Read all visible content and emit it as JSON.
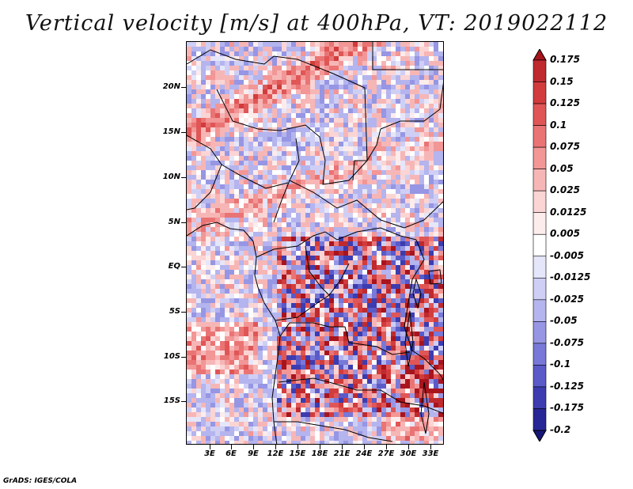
{
  "title": "Vertical velocity [m/s] at 400hPa, VT: 2019022112",
  "credit": "GrADS: IGES/COLA",
  "map": {
    "lat_labels": [
      "20N",
      "15N",
      "10N",
      "5N",
      "EQ",
      "5S",
      "10S",
      "15S"
    ],
    "lon_labels": [
      "3E",
      "6E",
      "9E",
      "12E",
      "15E",
      "18E",
      "21E",
      "24E",
      "27E",
      "30E",
      "33E"
    ]
  },
  "chart_data": {
    "type": "heatmap",
    "title": "Vertical velocity [m/s] at 400hPa, VT: 2019022112",
    "variable": "Vertical velocity",
    "units": "m/s",
    "level": "400hPa",
    "valid_time": "2019022112",
    "lon_range": [
      0,
      35
    ],
    "lat_range": [
      -19,
      25
    ],
    "colorbar": {
      "labels": [
        "0.175",
        "0.15",
        "0.125",
        "0.1",
        "0.075",
        "0.05",
        "0.025",
        "0.0125",
        "0.005",
        "-0.005",
        "-0.0125",
        "-0.025",
        "-0.05",
        "-0.075",
        "-0.1",
        "-0.125",
        "-0.175",
        "-0.2"
      ],
      "colors": [
        "#a8141e",
        "#be2a2e",
        "#d23c3c",
        "#e05656",
        "#ea7474",
        "#f29696",
        "#f7b6b6",
        "#fbd4d4",
        "#fdecec",
        "#ffffff",
        "#e6e6fa",
        "#cfcff5",
        "#b4b4ee",
        "#9696e4",
        "#7878d8",
        "#5a5ac8",
        "#3c3cb0",
        "#262696",
        "#161678"
      ]
    }
  }
}
